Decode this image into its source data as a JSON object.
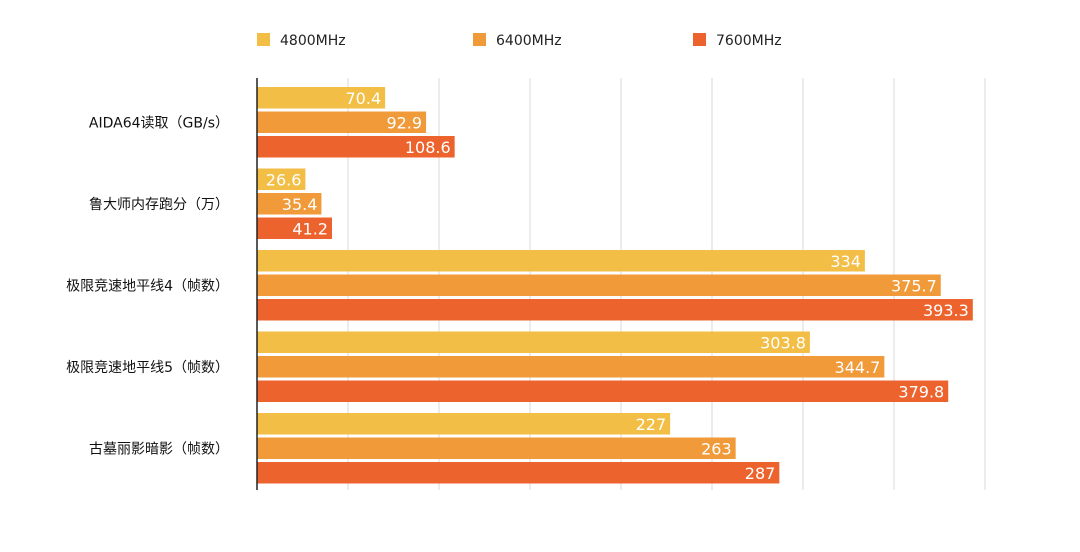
{
  "chart_data": {
    "type": "bar",
    "orientation": "horizontal",
    "title": "",
    "xlabel": "",
    "ylabel": "",
    "xlim": [
      0,
      400
    ],
    "grid": true,
    "legend_position": "top",
    "categories": [
      "AIDA64读取（GB/s）",
      "鲁大师内存跑分（万）",
      "极限竞速地平线4（帧数）",
      "极限竞速地平线5（帧数）",
      "古墓丽影暗影（帧数）"
    ],
    "series": [
      {
        "name": "4800MHz",
        "color": "#F2BE45",
        "values": [
          70.4,
          26.6,
          334,
          303.8,
          227
        ]
      },
      {
        "name": "6400MHz",
        "color": "#F09A3A",
        "values": [
          92.9,
          35.4,
          375.7,
          344.7,
          263
        ]
      },
      {
        "name": "7600MHz",
        "color": "#EC632D",
        "values": [
          108.6,
          41.2,
          393.3,
          379.8,
          287
        ]
      }
    ]
  }
}
